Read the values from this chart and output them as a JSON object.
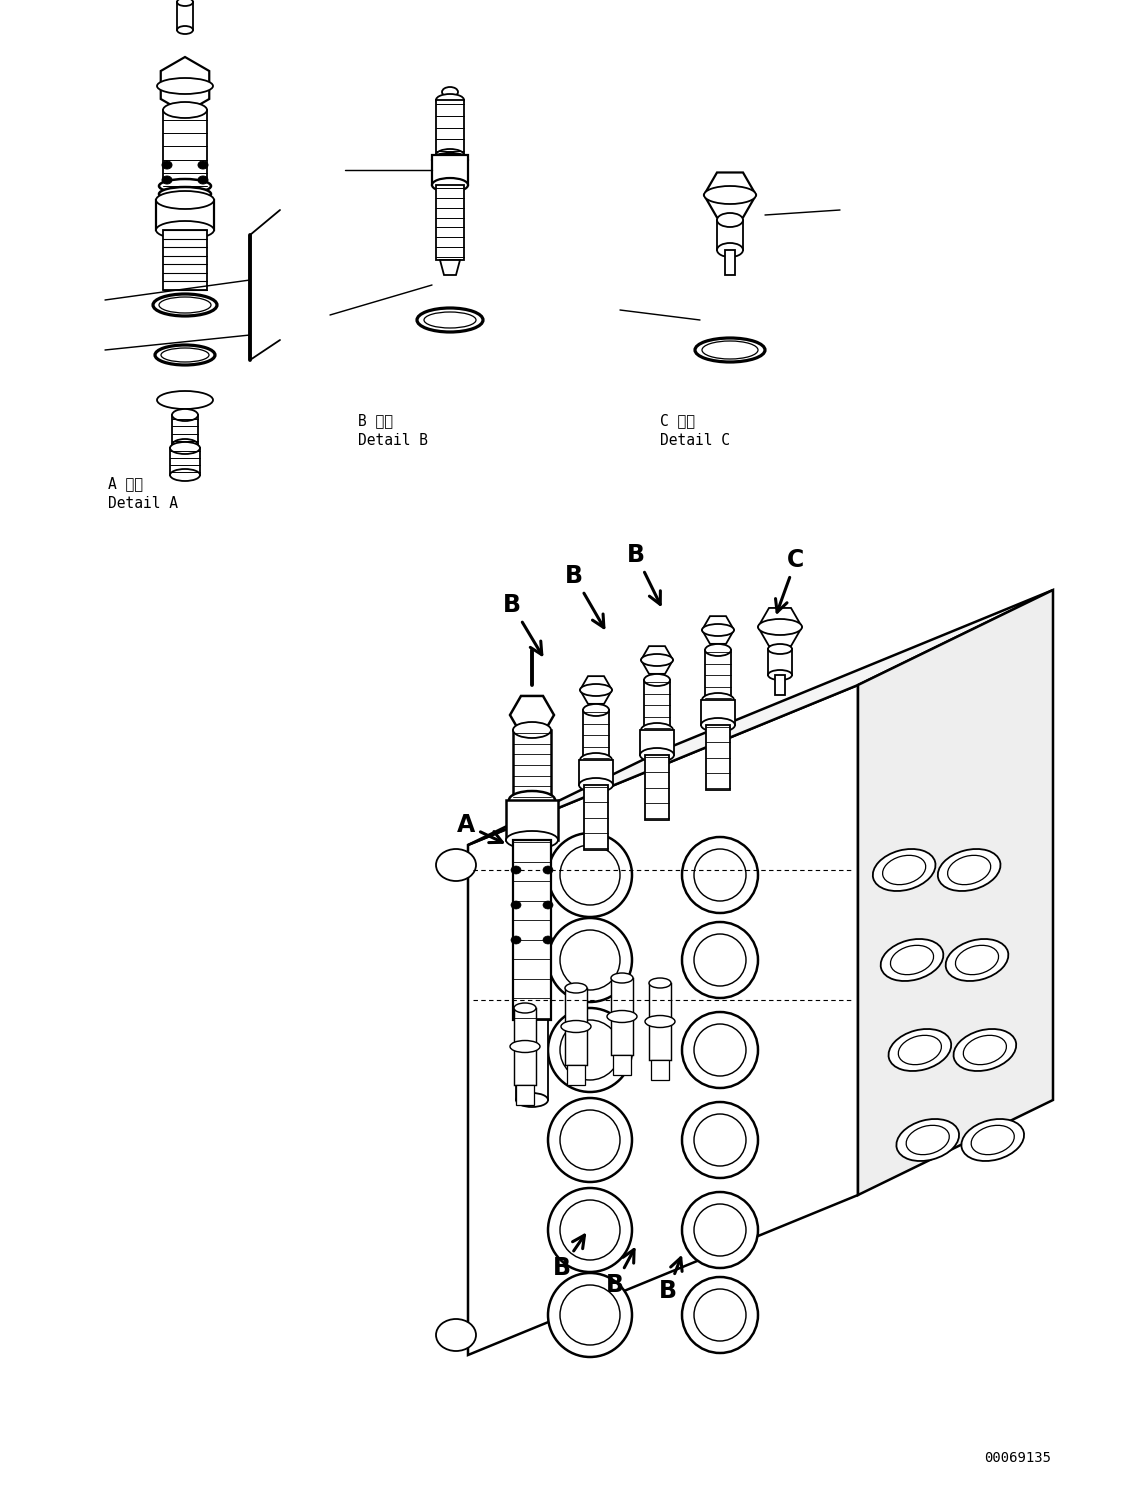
{
  "background_color": "#ffffff",
  "line_color": "#000000",
  "figure_width": 11.37,
  "figure_height": 14.86,
  "dpi": 100,
  "part_number": "00069135",
  "label_A_ja": "A 詳細",
  "label_A_en": "Detail A",
  "label_B_ja": "B 詳細",
  "label_B_en": "Detail B",
  "label_C_ja": "C 詳細",
  "label_C_en": "Detail C"
}
